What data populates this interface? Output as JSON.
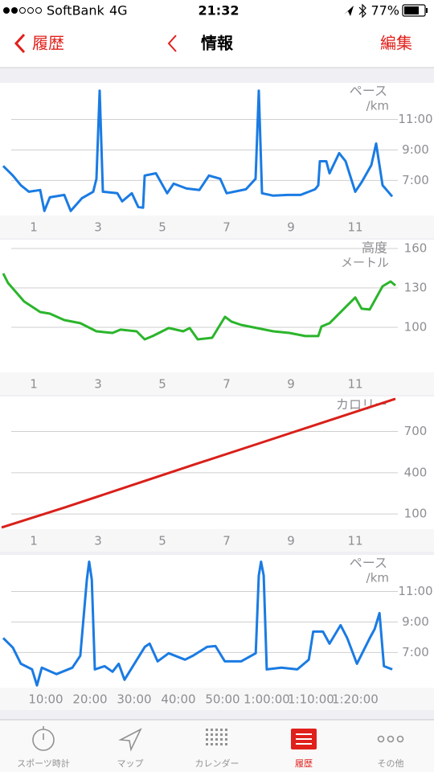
{
  "status_bar": {
    "carrier": "SoftBank",
    "network": "4G",
    "time": "21:32",
    "battery": "77%"
  },
  "nav_bar": {
    "back": "履歴",
    "title": "情報",
    "action": "編集"
  },
  "chart_data": [
    {
      "type": "line",
      "ylabel": "ペース",
      "yunit": "/km",
      "color": "#1a7be3",
      "grid": true,
      "xlim": [
        0,
        12.4
      ],
      "xticks": [
        1,
        3,
        5,
        7,
        9,
        11
      ],
      "ylim": [
        4.7,
        13.4
      ],
      "yticks": [
        {
          "value": 7,
          "label": "7:00"
        },
        {
          "value": 9,
          "label": "9:00"
        },
        {
          "value": 11,
          "label": "11:00"
        }
      ],
      "x": [
        0.05,
        0.35,
        0.6,
        0.85,
        1.2,
        1.33,
        1.5,
        1.95,
        2.15,
        2.5,
        2.85,
        2.95,
        3.05,
        3.15,
        3.6,
        3.75,
        4.05,
        4.25,
        4.4,
        4.45,
        4.8,
        5.15,
        5.35,
        5.75,
        6.15,
        6.45,
        6.8,
        7.0,
        7.6,
        7.9,
        8.0,
        8.1,
        8.45,
        8.9,
        9.3,
        9.75,
        9.85,
        9.9,
        10.1,
        10.2,
        10.5,
        10.7,
        11.0,
        11.2,
        11.5,
        11.65,
        11.85,
        12.15
      ],
      "values": [
        7.95,
        7.32,
        6.68,
        6.26,
        6.37,
        5.0,
        5.89,
        6.05,
        5.0,
        5.84,
        6.26,
        7.11,
        12.89,
        6.26,
        6.16,
        5.63,
        6.16,
        5.26,
        5.21,
        7.32,
        7.47,
        6.16,
        6.79,
        6.47,
        6.37,
        7.32,
        7.11,
        6.16,
        6.42,
        7.11,
        12.89,
        6.16,
        6.0,
        6.05,
        6.05,
        6.42,
        6.68,
        8.26,
        8.26,
        7.47,
        8.79,
        8.26,
        6.26,
        6.89,
        8.0,
        9.42,
        6.68,
        5.95
      ]
    },
    {
      "type": "line",
      "ylabel": "高度",
      "yunit": "メートル",
      "color": "#2bb52b",
      "grid": true,
      "xlim": [
        0,
        12.4
      ],
      "xticks": [
        1,
        3,
        5,
        7,
        9,
        11
      ],
      "ylim": [
        65.7,
        166.7
      ],
      "yticks": [
        100,
        130,
        160
      ],
      "x": [
        0.05,
        0.2,
        0.7,
        1.2,
        1.5,
        1.95,
        2.45,
        2.95,
        3.45,
        3.7,
        4.2,
        4.45,
        4.7,
        5.2,
        5.65,
        5.85,
        6.1,
        6.55,
        6.95,
        7.15,
        7.45,
        8.45,
        8.95,
        9.45,
        9.85,
        9.95,
        10.2,
        11.0,
        11.2,
        11.45,
        11.85,
        12.1,
        12.25
      ],
      "values": [
        141,
        133.7,
        119.6,
        111.6,
        110.4,
        105.5,
        103.1,
        96.9,
        95.7,
        98.2,
        96.9,
        90.8,
        93.3,
        99.4,
        96.9,
        99.4,
        90.8,
        92.0,
        108.0,
        104.3,
        101.8,
        96.9,
        95.7,
        93.3,
        93.3,
        100.6,
        103.1,
        122.7,
        114.1,
        113.5,
        131.2,
        134.9,
        131.8
      ]
    },
    {
      "type": "line",
      "ylabel": "カロリー",
      "color": "#d9201a",
      "grid": true,
      "xlim": [
        0,
        12.4
      ],
      "xticks": [
        1,
        3,
        5,
        7,
        9,
        11
      ],
      "ylim": [
        -10,
        954
      ],
      "yticks": [
        100,
        400,
        700
      ],
      "x": [
        0,
        2,
        4,
        6,
        8,
        10,
        12.25
      ],
      "values": [
        2,
        150,
        305,
        460,
        612,
        765,
        937
      ]
    },
    {
      "type": "line",
      "ylabel": "ペース",
      "yunit": "/km",
      "color": "#1a7be3",
      "grid": true,
      "xlim": [
        0,
        90.2
      ],
      "xticks": [
        {
          "value": 10,
          "label": "10:00"
        },
        {
          "value": 20,
          "label": "20:00"
        },
        {
          "value": 30,
          "label": "30:00"
        },
        {
          "value": 40,
          "label": "40:00"
        },
        {
          "value": 50,
          "label": "50:00"
        },
        {
          "value": 60,
          "label": "1:00:00"
        },
        {
          "value": 70,
          "label": "1:10:00"
        },
        {
          "value": 80,
          "label": "1:20:00"
        }
      ],
      "ylim": [
        4.7,
        13.4
      ],
      "yticks": [
        {
          "value": 7,
          "label": "7:00"
        },
        {
          "value": 9,
          "label": "9:00"
        },
        {
          "value": 11,
          "label": "11:00"
        }
      ],
      "x": [
        0.36,
        2.55,
        4.36,
        6.9,
        8.0,
        9.1,
        12.4,
        16.0,
        17.8,
        19.3,
        19.8,
        20.4,
        21.1,
        23.3,
        25.1,
        26.5,
        27.8,
        32.4,
        33.5,
        35.3,
        37.8,
        41.5,
        43.3,
        46.5,
        48.4,
        50.5,
        54.2,
        57.5,
        58.2,
        58.7,
        59.3,
        60.0,
        63.3,
        66.9,
        69.5,
        70.5,
        72.7,
        74.2,
        76.7,
        78.2,
        80.4,
        83.3,
        84.4,
        85.5,
        86.5,
        88.4
      ],
      "values": [
        7.95,
        7.32,
        6.26,
        5.89,
        4.84,
        6.0,
        5.58,
        6.0,
        6.79,
        11.79,
        12.95,
        11.79,
        5.89,
        6.1,
        5.74,
        6.26,
        5.21,
        7.37,
        7.58,
        6.42,
        6.95,
        6.53,
        6.79,
        7.37,
        7.42,
        6.42,
        6.42,
        6.95,
        12.05,
        12.95,
        12.05,
        5.89,
        6.0,
        5.89,
        6.53,
        8.37,
        8.37,
        7.58,
        8.79,
        7.95,
        6.26,
        7.95,
        8.53,
        9.58,
        6.1,
        5.89
      ]
    }
  ],
  "tab_bar": {
    "items": [
      "スポーツ時計",
      "マップ",
      "カレンダー",
      "履歴",
      "その他"
    ],
    "selected": 3
  }
}
